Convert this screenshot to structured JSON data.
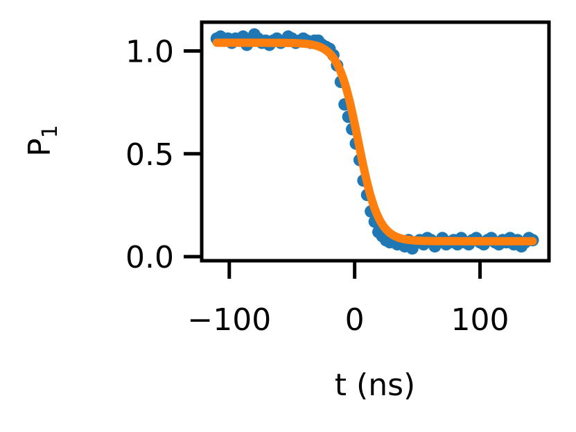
{
  "chart_data": {
    "type": "scatter",
    "title": "",
    "xlabel": "t (ns)",
    "ylabel": {
      "main": "P",
      "subscript": "1"
    },
    "xlim": [
      -122,
      155
    ],
    "ylim": [
      -0.02,
      1.14
    ],
    "xticks": [
      {
        "value": -100,
        "label": "−100"
      },
      {
        "value": 0,
        "label": "0"
      },
      {
        "value": 100,
        "label": "100"
      }
    ],
    "yticks": [
      {
        "value": 0.0,
        "label": "0.0"
      },
      {
        "value": 0.5,
        "label": "0.5"
      },
      {
        "value": 1.0,
        "label": "1.0"
      }
    ],
    "grid": false,
    "legend": "none",
    "series": [
      {
        "kind": "scatter",
        "color": "#1f77b4",
        "points": [
          [
            -110,
            1.06
          ],
          [
            -107,
            1.07
          ],
          [
            -104,
            1.05
          ],
          [
            -101,
            1.06
          ],
          [
            -98,
            1.04
          ],
          [
            -95,
            1.06
          ],
          [
            -92,
            1.05
          ],
          [
            -89,
            1.07
          ],
          [
            -86,
            1.03
          ],
          [
            -83,
            1.05
          ],
          [
            -80,
            1.08
          ],
          [
            -77,
            1.06
          ],
          [
            -74,
            1.04
          ],
          [
            -71,
            1.05
          ],
          [
            -68,
            1.03
          ],
          [
            -65,
            1.05
          ],
          [
            -62,
            1.06
          ],
          [
            -59,
            1.04
          ],
          [
            -56,
            1.05
          ],
          [
            -53,
            1.07
          ],
          [
            -50,
            1.06
          ],
          [
            -47,
            1.04
          ],
          [
            -44,
            1.05
          ],
          [
            -41,
            1.06
          ],
          [
            -38,
            1.05
          ],
          [
            -35,
            1.04
          ],
          [
            -32,
            1.05
          ],
          [
            -29,
            1.05
          ],
          [
            -26,
            1.03
          ],
          [
            -23,
            1.02
          ],
          [
            -20,
            1.01
          ],
          [
            -17,
            0.98
          ],
          [
            -14,
            0.93
          ],
          [
            -11,
            0.85
          ],
          [
            -8,
            0.74
          ],
          [
            -5,
            0.68
          ],
          [
            -2,
            0.62
          ],
          [
            1,
            0.55
          ],
          [
            4,
            0.47
          ],
          [
            7,
            0.37
          ],
          [
            10,
            0.3
          ],
          [
            13,
            0.22
          ],
          [
            16,
            0.17
          ],
          [
            19,
            0.12
          ],
          [
            22,
            0.1
          ],
          [
            25,
            0.08
          ],
          [
            28,
            0.07
          ],
          [
            31,
            0.09
          ],
          [
            34,
            0.06
          ],
          [
            37,
            0.07
          ],
          [
            40,
            0.05
          ],
          [
            43,
            0.08
          ],
          [
            46,
            0.04
          ],
          [
            49,
            0.07
          ],
          [
            52,
            0.08
          ],
          [
            55,
            0.06
          ],
          [
            58,
            0.09
          ],
          [
            61,
            0.08
          ],
          [
            64,
            0.05
          ],
          [
            67,
            0.07
          ],
          [
            70,
            0.09
          ],
          [
            73,
            0.06
          ],
          [
            76,
            0.07
          ],
          [
            79,
            0.08
          ],
          [
            82,
            0.06
          ],
          [
            85,
            0.09
          ],
          [
            88,
            0.07
          ],
          [
            91,
            0.06
          ],
          [
            94,
            0.08
          ],
          [
            97,
            0.09
          ],
          [
            100,
            0.07
          ],
          [
            103,
            0.06
          ],
          [
            106,
            0.08
          ],
          [
            109,
            0.09
          ],
          [
            112,
            0.07
          ],
          [
            115,
            0.06
          ],
          [
            118,
            0.08
          ],
          [
            121,
            0.07
          ],
          [
            124,
            0.09
          ],
          [
            127,
            0.06
          ],
          [
            130,
            0.08
          ],
          [
            133,
            0.05
          ],
          [
            136,
            0.07
          ],
          [
            139,
            0.09
          ],
          [
            142,
            0.08
          ]
        ]
      },
      {
        "kind": "line",
        "color": "#ff7f0e",
        "model": {
          "form": "logistic",
          "high": 1.04,
          "low": 0.075,
          "center": 3,
          "width": 8
        },
        "x_range": [
          -110,
          142
        ]
      }
    ]
  }
}
